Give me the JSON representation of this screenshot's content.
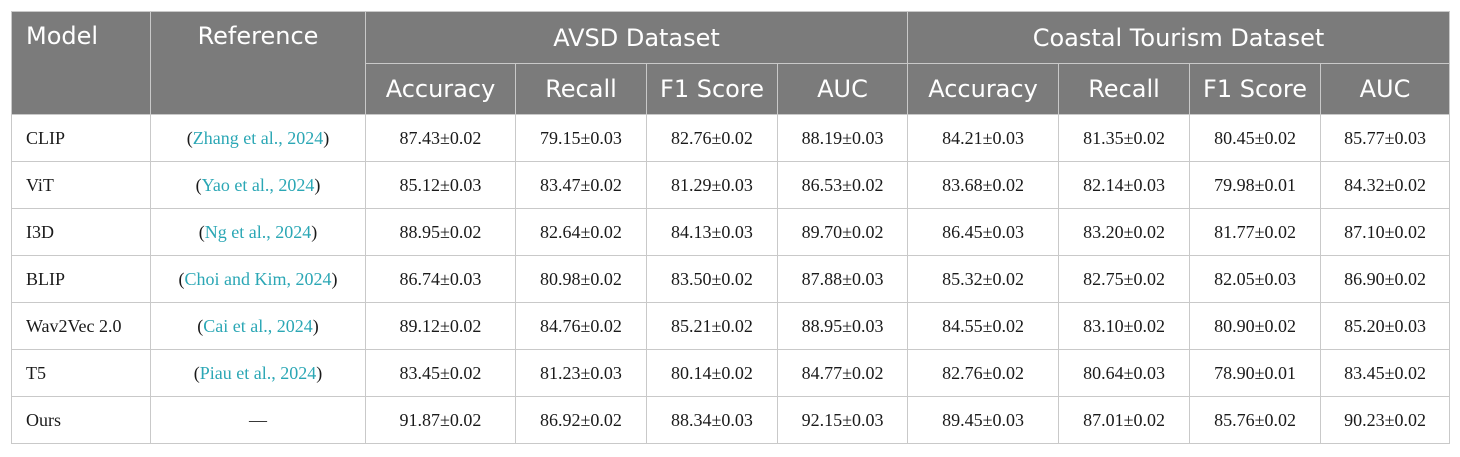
{
  "header": {
    "model": "Model",
    "reference": "Reference",
    "groups": [
      "AVSD Dataset",
      "Coastal Tourism Dataset"
    ],
    "metrics": [
      "Accuracy",
      "Recall",
      "F1 Score",
      "AUC",
      "Accuracy",
      "Recall",
      "F1 Score",
      "AUC"
    ]
  },
  "rows": [
    {
      "model": "CLIP",
      "ref_open": "(",
      "ref": "Zhang et al., 2024",
      "ref_close": ")",
      "values": [
        "87.43±0.02",
        "79.15±0.03",
        "82.76±0.02",
        "88.19±0.03",
        "84.21±0.03",
        "81.35±0.02",
        "80.45±0.02",
        "85.77±0.03"
      ]
    },
    {
      "model": "ViT",
      "ref_open": "(",
      "ref": "Yao et al., 2024",
      "ref_close": ")",
      "values": [
        "85.12±0.03",
        "83.47±0.02",
        "81.29±0.03",
        "86.53±0.02",
        "83.68±0.02",
        "82.14±0.03",
        "79.98±0.01",
        "84.32±0.02"
      ]
    },
    {
      "model": "I3D",
      "ref_open": "(",
      "ref": "Ng et al., 2024",
      "ref_close": ")",
      "values": [
        "88.95±0.02",
        "82.64±0.02",
        "84.13±0.03",
        "89.70±0.02",
        "86.45±0.03",
        "83.20±0.02",
        "81.77±0.02",
        "87.10±0.02"
      ]
    },
    {
      "model": "BLIP",
      "ref_open": "(",
      "ref": "Choi and Kim, 2024",
      "ref_close": ")",
      "values": [
        "86.74±0.03",
        "80.98±0.02",
        "83.50±0.02",
        "87.88±0.03",
        "85.32±0.02",
        "82.75±0.02",
        "82.05±0.03",
        "86.90±0.02"
      ]
    },
    {
      "model": "Wav2Vec 2.0",
      "ref_open": "(",
      "ref": "Cai et al., 2024",
      "ref_close": ")",
      "values": [
        "89.12±0.02",
        "84.76±0.02",
        "85.21±0.02",
        "88.95±0.03",
        "84.55±0.02",
        "83.10±0.02",
        "80.90±0.02",
        "85.20±0.03"
      ]
    },
    {
      "model": "T5",
      "ref_open": "(",
      "ref": "Piau et al., 2024",
      "ref_close": ")",
      "values": [
        "83.45±0.02",
        "81.23±0.03",
        "80.14±0.02",
        "84.77±0.02",
        "82.76±0.02",
        "80.64±0.03",
        "78.90±0.01",
        "83.45±0.02"
      ]
    },
    {
      "model": "Ours",
      "ref_open": "",
      "ref": "—",
      "ref_close": "",
      "values": [
        "91.87±0.02",
        "86.92±0.02",
        "88.34±0.03",
        "92.15±0.03",
        "89.45±0.03",
        "87.01±0.02",
        "85.76±0.02",
        "90.23±0.02"
      ]
    }
  ],
  "colors": {
    "header_bg": "#7b7b7b",
    "header_text": "#ffffff",
    "link": "#2ba7b5",
    "border": "#c9c9c9"
  }
}
